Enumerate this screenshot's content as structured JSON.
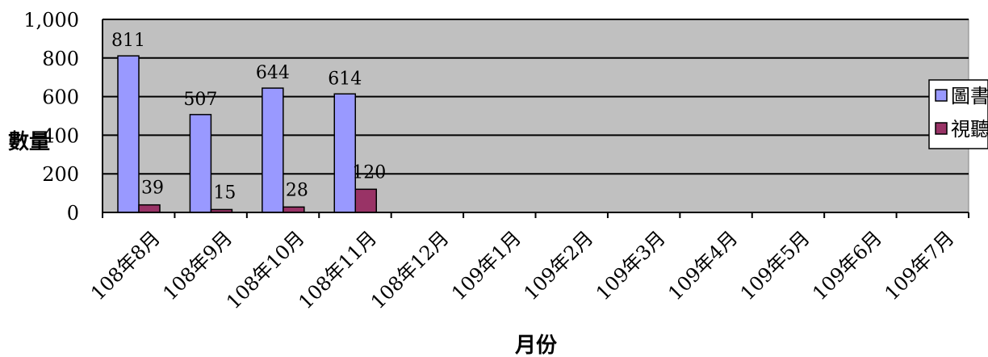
{
  "chart_data": {
    "type": "bar",
    "xlabel": "月份",
    "ylabel": "數量",
    "ylim": [
      0,
      1000
    ],
    "yticks": [
      "0",
      "200",
      "400",
      "600",
      "800",
      "1,000"
    ],
    "categories": [
      "108年8月",
      "108年9月",
      "108年10月",
      "108年11月",
      "108年12月",
      "109年1月",
      "109年2月",
      "109年3月",
      "109年4月",
      "109年5月",
      "109年6月",
      "109年7月"
    ],
    "series": [
      {
        "name": "圖書",
        "color": "#9999ff",
        "values": [
          811,
          507,
          644,
          614,
          null,
          null,
          null,
          null,
          null,
          null,
          null,
          null
        ]
      },
      {
        "name": "視聽",
        "color": "#993366",
        "values": [
          39,
          15,
          28,
          120,
          null,
          null,
          null,
          null,
          null,
          null,
          null,
          null
        ]
      }
    ],
    "grid": true,
    "legend": "right",
    "plot_background": "#c0c0c0"
  }
}
